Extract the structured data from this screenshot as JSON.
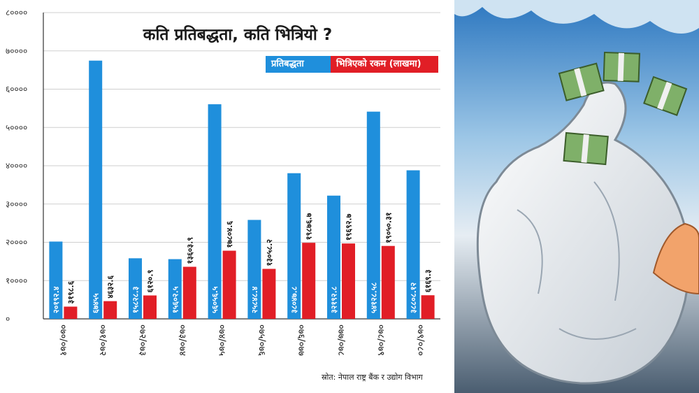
{
  "title": "कति प्रतिबद्धता, कति भित्रियो ?",
  "legend": {
    "commitment": "प्रतिबद्धता",
    "disbursement": "भित्रिएको रकम (लाखमा)"
  },
  "source": "स्रोत: नेपाल राष्ट्र बैंक र उद्योग विभाग",
  "colors": {
    "commitment": "#1f8fdc",
    "disbursement": "#e11e26",
    "grid": "#cfcfcf",
    "axis": "#333333"
  },
  "chart_data": {
    "type": "bar",
    "title": "कति प्रतिबद्धता, कति भित्रियो ?",
    "categories": [
      "०७०/०७१",
      "०७१/०७२",
      "०७२/०७३",
      "०७३/०७४",
      "०७४/०७५",
      "०७५/०७६",
      "०७६/०७७",
      "०७७/०७८",
      "०७८/०७९",
      "०७९/०८०"
    ],
    "series": [
      {
        "name": "प्रतिबद्धता",
        "values": [
          20192.4,
          67455,
          15828.3,
          15602.5,
          56056.5,
          25848.4,
          38047.8,
          32192.8,
          54128.58,
          38808.12
        ],
        "labels": [
          "२०१९२.४",
          "६७४५५",
          "१५८२८.३",
          "१५६०२.५",
          "५६०५६.५",
          "२५८४८.४",
          "३८०४७.८",
          "३२१९२.८",
          "५४१२८.५८",
          "३८८०८.१२"
        ]
      },
      {
        "name": "भित्रिएको रकम (लाखमा)",
        "values": [
          3198.6,
          4632.6,
          6120.9,
          13603.9,
          17804.6,
          13058.2,
          19876.7,
          19692.7,
          19050.31,
          6169.3
        ],
        "labels": [
          "३१९८.६",
          "४६३२.६",
          "६१२०.९",
          "१३६०३.९",
          "१७८०४.६",
          "१३०५८.२",
          "१९८७६.७",
          "१९६९२.७",
          "१९०५०.३१",
          "६१६९.३"
        ]
      }
    ],
    "y_ticks": [
      0,
      10000,
      20000,
      30000,
      40000,
      50000,
      60000,
      70000,
      80000
    ],
    "y_tick_labels": [
      "०",
      "१००००",
      "२००००",
      "३००००",
      "४००००",
      "५००००",
      "६००००",
      "७००००",
      "८००००"
    ],
    "ylim": [
      0,
      80000
    ],
    "grid": true,
    "legend_position": "top-right"
  },
  "illustration": {
    "subject": "money-bag-with-cash-bundles"
  }
}
